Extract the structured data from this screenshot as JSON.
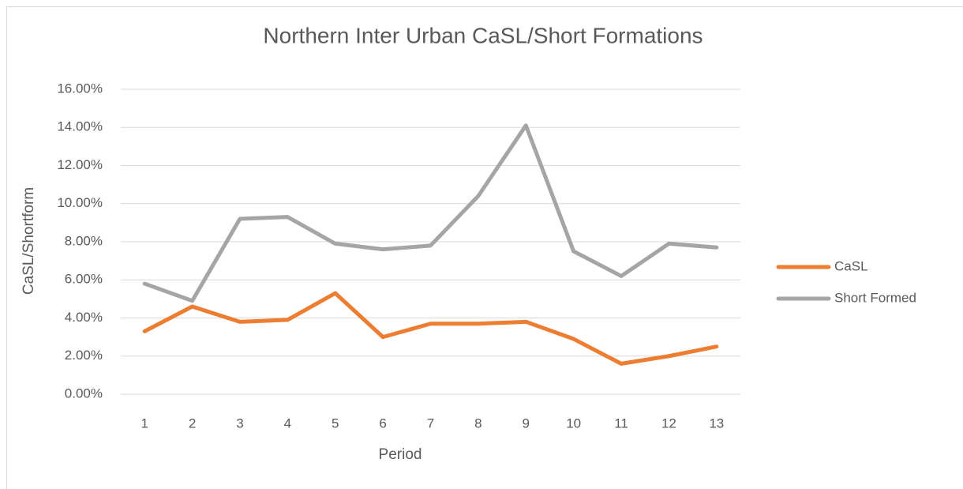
{
  "chart_data": {
    "type": "line",
    "title": "Northern Inter Urban CaSL/Short Formations",
    "x_label": "Period",
    "y_label": "CaSL/Shortform",
    "categories": [
      "1",
      "2",
      "3",
      "4",
      "5",
      "6",
      "7",
      "8",
      "9",
      "10",
      "11",
      "12",
      "13"
    ],
    "series": [
      {
        "name": "CaSL",
        "color": "#ed7d31",
        "values": [
          3.3,
          4.6,
          3.8,
          3.9,
          5.3,
          3.0,
          3.7,
          3.7,
          3.8,
          2.9,
          1.6,
          2.0,
          2.5
        ]
      },
      {
        "name": "Short Formed",
        "color": "#a5a5a5",
        "values": [
          5.8,
          4.9,
          9.2,
          9.3,
          7.9,
          7.6,
          7.8,
          10.4,
          14.1,
          7.5,
          6.2,
          7.9,
          7.7
        ]
      }
    ],
    "ylim": [
      0,
      16
    ],
    "yticks": [
      {
        "value": 0,
        "label": "0.00%"
      },
      {
        "value": 2,
        "label": "2.00%"
      },
      {
        "value": 4,
        "label": "4.00%"
      },
      {
        "value": 6,
        "label": "6.00%"
      },
      {
        "value": 8,
        "label": "8.00%"
      },
      {
        "value": 10,
        "label": "10.00%"
      },
      {
        "value": 12,
        "label": "12.00%"
      },
      {
        "value": 14,
        "label": "14.00%"
      },
      {
        "value": 16,
        "label": "16.00%"
      }
    ],
    "grid": true,
    "legend": "right"
  }
}
